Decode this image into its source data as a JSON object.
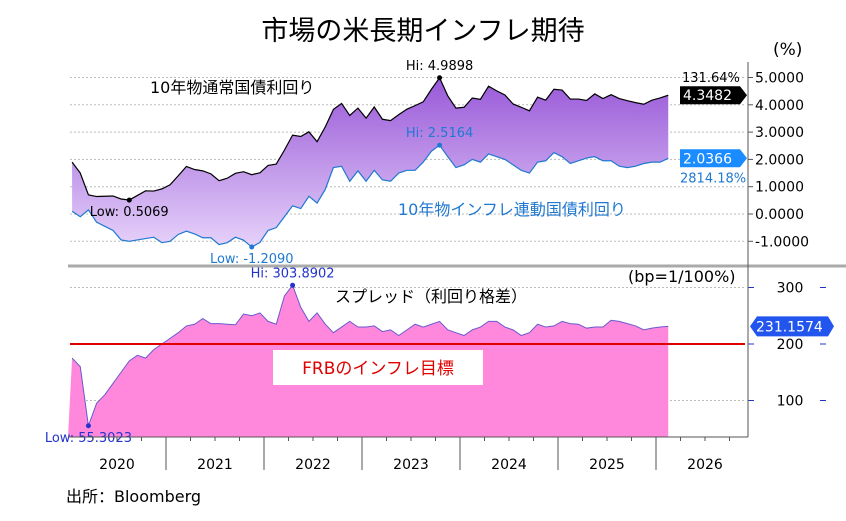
{
  "chart_data": [
    {
      "type": "area",
      "title": "市場の米長期インフレ期待",
      "unit_label": "(%)",
      "x_start": "2020-01",
      "x_frequency": "monthly",
      "ylim": [
        -1.5,
        5.3
      ],
      "yticks": [
        "5.0000",
        "4.0000",
        "3.0000",
        "2.0000",
        "1.0000",
        "0.0000",
        "-1.0000"
      ],
      "grid": true,
      "series": [
        {
          "name": "10年物通常国債利回り",
          "color": "#000000",
          "values": [
            1.9,
            1.5,
            0.7,
            0.64,
            0.65,
            0.66,
            0.55,
            0.51,
            0.68,
            0.85,
            0.84,
            0.92,
            1.07,
            1.4,
            1.74,
            1.63,
            1.58,
            1.47,
            1.22,
            1.31,
            1.49,
            1.55,
            1.44,
            1.51,
            1.78,
            1.83,
            2.34,
            2.89,
            2.84,
            3.01,
            2.65,
            3.19,
            3.83,
            4.05,
            3.61,
            3.88,
            3.51,
            3.92,
            3.47,
            3.42,
            3.64,
            3.84,
            3.97,
            4.11,
            4.57,
            4.99,
            4.33,
            3.88,
            3.91,
            4.25,
            4.2,
            4.68,
            4.51,
            4.36,
            4.03,
            3.91,
            3.78,
            4.28,
            4.17,
            4.57,
            4.54,
            4.21,
            4.21,
            4.16,
            4.4,
            4.23,
            4.37,
            4.23,
            4.15,
            4.08,
            4.02,
            4.17,
            4.25,
            4.35
          ],
          "last": "4.3482",
          "last_change": "131.64%",
          "hi": "Hi: 4.9898",
          "low": "Low: 0.5069"
        },
        {
          "name": "10年物インフレ連動国債利回り",
          "color": "#1f78d1",
          "values": [
            0.1,
            -0.1,
            0.15,
            -0.3,
            -0.45,
            -0.6,
            -0.95,
            -1.0,
            -0.95,
            -0.9,
            -0.85,
            -1.05,
            -1.0,
            -0.75,
            -0.63,
            -0.73,
            -0.87,
            -0.87,
            -1.12,
            -1.05,
            -0.85,
            -0.96,
            -1.21,
            -1.04,
            -0.6,
            -0.5,
            -0.1,
            0.3,
            0.2,
            0.65,
            0.4,
            0.9,
            1.7,
            1.75,
            1.2,
            1.58,
            1.2,
            1.6,
            1.25,
            1.2,
            1.5,
            1.6,
            1.6,
            1.9,
            2.3,
            2.52,
            2.1,
            1.7,
            1.8,
            2.0,
            1.9,
            2.2,
            2.1,
            2.0,
            1.8,
            1.6,
            1.5,
            1.9,
            1.95,
            2.25,
            2.1,
            1.85,
            1.95,
            2.05,
            2.1,
            1.95,
            1.95,
            1.75,
            1.7,
            1.75,
            1.85,
            1.9,
            1.9,
            2.04
          ],
          "last": "2.0366",
          "last_change": "2814.18%",
          "hi": "Hi: 2.5164",
          "low": "Low: -1.2090"
        }
      ]
    },
    {
      "type": "area",
      "name": "スプレッド（利回り格差）",
      "unit_label": "(bp=1/100%)",
      "x_start": "2020-01",
      "x_frequency": "monthly",
      "ylim": [
        35,
        335
      ],
      "yticks": [
        "300",
        "200",
        "100"
      ],
      "grid": true,
      "series": [
        {
          "name": "スプレッド（利回り格差）",
          "color": "#ff88dd",
          "values": [
            175,
            160,
            55.3,
            95,
            110,
            130,
            150,
            170,
            180,
            175,
            190,
            200,
            210,
            220,
            232,
            235,
            245,
            236,
            236,
            235,
            234,
            253,
            250,
            255,
            240,
            235,
            285,
            303.9,
            265,
            240,
            255,
            235,
            220,
            230,
            240,
            230,
            230,
            232,
            222,
            225,
            215,
            225,
            235,
            230,
            235,
            240,
            225,
            220,
            215,
            225,
            230,
            240,
            240,
            230,
            225,
            215,
            220,
            235,
            230,
            232,
            240,
            236,
            235,
            228,
            230,
            230,
            242,
            240,
            236,
            232,
            225,
            228,
            230,
            231.16
          ],
          "last": "231.1574",
          "hi": "Hi: 303.8902",
          "low": "Low: 55.3023"
        }
      ],
      "reference_line": {
        "value": 200,
        "label": "FRBのインフレ目標",
        "color": "#e00000"
      }
    }
  ],
  "x_ticks": [
    "2020",
    "2021",
    "2022",
    "2023",
    "2024",
    "2025",
    "2026"
  ],
  "source": "出所：Bloomberg"
}
